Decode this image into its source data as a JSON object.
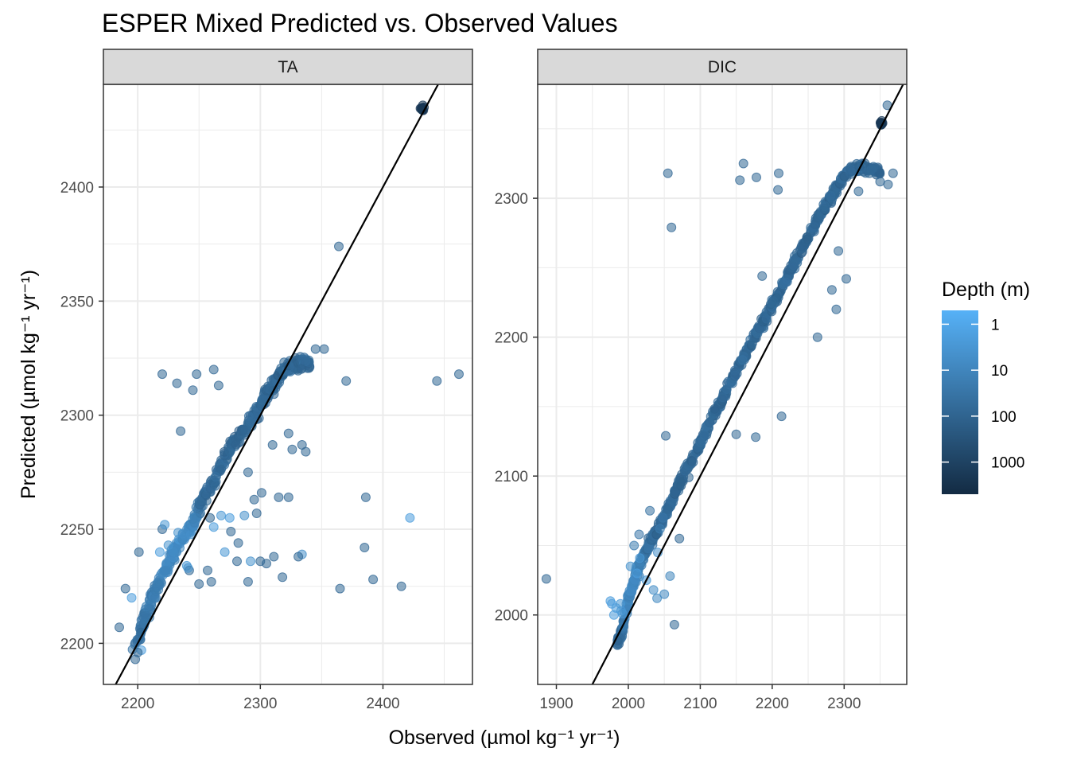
{
  "chart_data": {
    "type": "scatter",
    "title": "ESPER Mixed Predicted vs. Observed Values",
    "xlabel": "Observed (µmol kg⁻¹ yr⁻¹)",
    "ylabel": "Predicted (µmol kg⁻¹ yr⁻¹)",
    "legend": {
      "title": "Depth (m)",
      "placement": "right",
      "scale": "log",
      "range": [
        0.5,
        5000
      ],
      "breaks": [
        {
          "value": 1,
          "label": "1"
        },
        {
          "value": 10,
          "label": "10"
        },
        {
          "value": 100,
          "label": "100"
        },
        {
          "value": 1000,
          "label": "1000"
        }
      ],
      "color_low_depth": "#56B1F7",
      "color_high_depth": "#132B43"
    },
    "grid": true,
    "reference_line": "y = x",
    "panels": [
      {
        "name": "TA",
        "xlim": [
          2172,
          2473
        ],
        "ylim": [
          2182,
          2445
        ],
        "xticks": [
          {
            "value": 2200,
            "label": "2200"
          },
          {
            "value": 2300,
            "label": "2300"
          },
          {
            "value": 2400,
            "label": "2400"
          }
        ],
        "yticks": [
          {
            "value": 2200,
            "label": "2200"
          },
          {
            "value": 2250,
            "label": "2250"
          },
          {
            "value": 2300,
            "label": "2300"
          },
          {
            "value": 2350,
            "label": "2350"
          },
          {
            "value": 2400,
            "label": "2400"
          }
        ],
        "outliers": [
          [
            2220,
            2318,
            80
          ],
          [
            2232,
            2314,
            80
          ],
          [
            2245,
            2311,
            80
          ],
          [
            2248,
            2318,
            80
          ],
          [
            2262,
            2320,
            80
          ],
          [
            2235,
            2293,
            80
          ],
          [
            2250,
            2226,
            80
          ],
          [
            2266,
            2313,
            80
          ],
          [
            2345,
            2329,
            80
          ],
          [
            2352,
            2329,
            80
          ],
          [
            2364,
            2374,
            80
          ],
          [
            2370,
            2315,
            80
          ],
          [
            2444,
            2315,
            80
          ],
          [
            2462,
            2318,
            80
          ],
          [
            2386,
            2264,
            80
          ],
          [
            2385,
            2242,
            80
          ],
          [
            2422,
            2255,
            2
          ],
          [
            2365,
            2224,
            80
          ],
          [
            2392,
            2228,
            80
          ],
          [
            2415,
            2225,
            80
          ],
          [
            2318,
            2229,
            80
          ],
          [
            2305,
            2235,
            80
          ],
          [
            2300,
            2236,
            80
          ],
          [
            2290,
            2227,
            80
          ],
          [
            2292,
            2236,
            4
          ],
          [
            2311,
            2238,
            80
          ],
          [
            2334,
            2239,
            5
          ],
          [
            2331,
            2238,
            80
          ],
          [
            2323,
            2264,
            80
          ],
          [
            2315,
            2264,
            80
          ],
          [
            2301,
            2266,
            80
          ],
          [
            2297,
            2257,
            80
          ],
          [
            2337,
            2284,
            80
          ],
          [
            2334,
            2287,
            80
          ],
          [
            2326,
            2285,
            80
          ],
          [
            2323,
            2292,
            80
          ],
          [
            2310,
            2287,
            80
          ],
          [
            2290,
            2275,
            80
          ],
          [
            2295,
            2263,
            80
          ],
          [
            2282,
            2244,
            80
          ],
          [
            2271,
            2240,
            3
          ],
          [
            2262,
            2251,
            2
          ],
          [
            2275,
            2255,
            2
          ],
          [
            2268,
            2256,
            3
          ],
          [
            2276,
            2249,
            80
          ],
          [
            2259,
            2255,
            80
          ],
          [
            2281,
            2236,
            80
          ],
          [
            2287,
            2256,
            5
          ],
          [
            2220,
            2250,
            80
          ],
          [
            2222,
            2252,
            3
          ],
          [
            2225,
            2243,
            4
          ],
          [
            2218,
            2240,
            2
          ],
          [
            2201,
            2240,
            80
          ],
          [
            2195,
            2220,
            2
          ],
          [
            2190,
            2224,
            80
          ],
          [
            2185,
            2207,
            80
          ],
          [
            2203,
            2197,
            2
          ],
          [
            2200,
            2196,
            80
          ],
          [
            2198,
            2193,
            80
          ],
          [
            2240,
            2234,
            3
          ],
          [
            2257,
            2232,
            80
          ],
          [
            2242,
            2232,
            80
          ],
          [
            2260,
            2227,
            80
          ],
          [
            2241,
            2233,
            4
          ]
        ],
        "main_cluster": [
          [
            2198,
            2198,
            40
          ],
          [
            2205,
            2210,
            40
          ],
          [
            2212,
            2220,
            20
          ],
          [
            2220,
            2230,
            10
          ],
          [
            2228,
            2238,
            8
          ],
          [
            2236,
            2246,
            6
          ],
          [
            2245,
            2252,
            8
          ],
          [
            2252,
            2262,
            60
          ],
          [
            2262,
            2270,
            60
          ],
          [
            2270,
            2280,
            70
          ],
          [
            2278,
            2288,
            80
          ],
          [
            2288,
            2295,
            80
          ],
          [
            2298,
            2302,
            80
          ],
          [
            2306,
            2310,
            80
          ],
          [
            2314,
            2316,
            80
          ],
          [
            2320,
            2320,
            80
          ],
          [
            2328,
            2322,
            80
          ],
          [
            2334,
            2323,
            80
          ],
          [
            2340,
            2322,
            80
          ]
        ],
        "top_cluster": [
          2432,
          2434,
          2000
        ]
      },
      {
        "name": "DIC",
        "xlim": [
          1874,
          2387
        ],
        "ylim": [
          1950,
          2382
        ],
        "xticks": [
          {
            "value": 1900,
            "label": "1900"
          },
          {
            "value": 2000,
            "label": "2000"
          },
          {
            "value": 2100,
            "label": "2100"
          },
          {
            "value": 2200,
            "label": "2200"
          },
          {
            "value": 2300,
            "label": "2300"
          }
        ],
        "yticks": [
          {
            "value": 2000,
            "label": "2000"
          },
          {
            "value": 2100,
            "label": "2100"
          },
          {
            "value": 2200,
            "label": "2200"
          },
          {
            "value": 2300,
            "label": "2300"
          }
        ],
        "outliers": [
          [
            1886,
            2026,
            80
          ],
          [
            1975,
            2010,
            2
          ],
          [
            1977,
            2008,
            2
          ],
          [
            1983,
            2005,
            2
          ],
          [
            1990,
            2003,
            3
          ],
          [
            1992,
            2001,
            3
          ],
          [
            1980,
            2000,
            2
          ],
          [
            1989,
            2008,
            3
          ],
          [
            2055,
            2318,
            80
          ],
          [
            2060,
            2279,
            80
          ],
          [
            2155,
            2313,
            80
          ],
          [
            2160,
            2325,
            80
          ],
          [
            2178,
            2315,
            80
          ],
          [
            2208,
            2306,
            80
          ],
          [
            2209,
            2318,
            80
          ],
          [
            2186,
            2244,
            80
          ],
          [
            2213,
            2143,
            80
          ],
          [
            2177,
            2128,
            80
          ],
          [
            2150,
            2130,
            80
          ],
          [
            2052,
            2129,
            80
          ],
          [
            2064,
            1993,
            80
          ],
          [
            2263,
            2200,
            80
          ],
          [
            2289,
            2220,
            80
          ],
          [
            2283,
            2234,
            80
          ],
          [
            2303,
            2242,
            80
          ],
          [
            2292,
            2262,
            80
          ],
          [
            2265,
            2287,
            80
          ],
          [
            2320,
            2305,
            80
          ],
          [
            2335,
            2318,
            80
          ],
          [
            2350,
            2312,
            80
          ],
          [
            2361,
            2310,
            80
          ],
          [
            2368,
            2318,
            80
          ],
          [
            2360,
            2367,
            80
          ],
          [
            2048,
            2070,
            30
          ],
          [
            2030,
            2075,
            40
          ],
          [
            2044,
            2062,
            20
          ],
          [
            2071,
            2055,
            80
          ],
          [
            2084,
            2099,
            80
          ],
          [
            2090,
            2110,
            80
          ],
          [
            2050,
            2015,
            8
          ],
          [
            2058,
            2028,
            10
          ],
          [
            2041,
            2045,
            5
          ],
          [
            2016,
            2041,
            3
          ],
          [
            2003,
            2035,
            4
          ],
          [
            2008,
            2050,
            20
          ],
          [
            2015,
            2058,
            30
          ],
          [
            2012,
            2030,
            2
          ],
          [
            2025,
            2025,
            3
          ],
          [
            2035,
            2018,
            6
          ],
          [
            2040,
            2012,
            8
          ]
        ],
        "main_cluster": [
          [
            1985,
            1978,
            80
          ],
          [
            1992,
            1990,
            40
          ],
          [
            2000,
            2012,
            10
          ],
          [
            2008,
            2024,
            8
          ],
          [
            2015,
            2036,
            20
          ],
          [
            2025,
            2047,
            40
          ],
          [
            2036,
            2057,
            60
          ],
          [
            2048,
            2069,
            70
          ],
          [
            2060,
            2082,
            80
          ],
          [
            2072,
            2096,
            80
          ],
          [
            2086,
            2110,
            80
          ],
          [
            2100,
            2124,
            80
          ],
          [
            2114,
            2139,
            80
          ],
          [
            2128,
            2153,
            80
          ],
          [
            2142,
            2167,
            80
          ],
          [
            2156,
            2181,
            80
          ],
          [
            2170,
            2195,
            80
          ],
          [
            2184,
            2208,
            80
          ],
          [
            2198,
            2221,
            80
          ],
          [
            2212,
            2235,
            80
          ],
          [
            2226,
            2249,
            80
          ],
          [
            2240,
            2262,
            80
          ],
          [
            2254,
            2276,
            80
          ],
          [
            2268,
            2289,
            80
          ],
          [
            2282,
            2301,
            80
          ],
          [
            2295,
            2312,
            80
          ],
          [
            2308,
            2320,
            80
          ],
          [
            2322,
            2322,
            80
          ],
          [
            2338,
            2321,
            80
          ],
          [
            2350,
            2319,
            80
          ]
        ],
        "top_cluster": [
          2352,
          2354,
          2000
        ]
      }
    ]
  }
}
